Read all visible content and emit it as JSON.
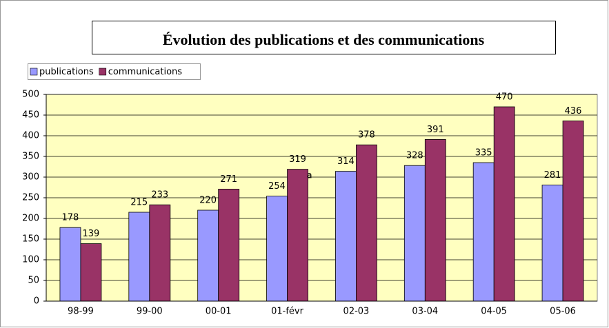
{
  "chart_data": {
    "type": "bar",
    "title": "Évolution des publications et des communications",
    "categories": [
      "98-99",
      "99-00",
      "00-01",
      "01-févr",
      "02-03",
      "03-04",
      "04-05",
      "05-06"
    ],
    "series": [
      {
        "name": "publications",
        "color": "#9999ff",
        "values": [
          178,
          215,
          220,
          254,
          314,
          328,
          335,
          281
        ]
      },
      {
        "name": "communications",
        "color": "#993366",
        "values": [
          139,
          233,
          271,
          319,
          378,
          391,
          470,
          436
        ]
      }
    ],
    "annotation": "a",
    "ylim": [
      0,
      500
    ],
    "yticks": [
      0,
      50,
      100,
      150,
      200,
      250,
      300,
      350,
      400,
      450,
      500
    ],
    "grid": true,
    "legend": "top-left",
    "plot_background": "#ffffc0"
  }
}
